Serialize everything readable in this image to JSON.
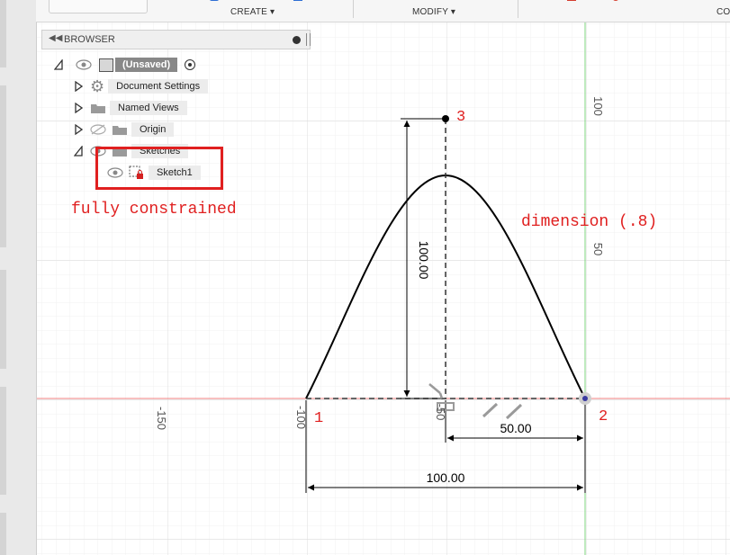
{
  "toolbar": {
    "create_label": "CREATE ▾",
    "modify_label": "MODIFY ▾",
    "cut_label": "CO"
  },
  "browser": {
    "title": "BROWSER",
    "root_label": "(Unsaved)",
    "items": [
      {
        "label": "Document Settings"
      },
      {
        "label": "Named Views"
      },
      {
        "label": "Origin"
      },
      {
        "label": "Sketches"
      },
      {
        "label": "Sketch1"
      }
    ]
  },
  "annotations": {
    "fully_constrained": "fully constrained",
    "dimension_note": "dimension (.8)",
    "point_1": "1",
    "point_2": "2",
    "point_3": "3"
  },
  "dimensions": {
    "height": "100.00",
    "half_base": "50.00",
    "base": "100.00"
  },
  "grid_labels": {
    "h_neg150": "-150",
    "h_neg100": "-100",
    "h_neg50": "-50",
    "v_100": "100",
    "v_50": "50"
  },
  "colors": {
    "accent_red": "#e02020",
    "axis_red": "#f08080",
    "axis_green": "#7fd67f",
    "sketch_line": "#000000"
  }
}
